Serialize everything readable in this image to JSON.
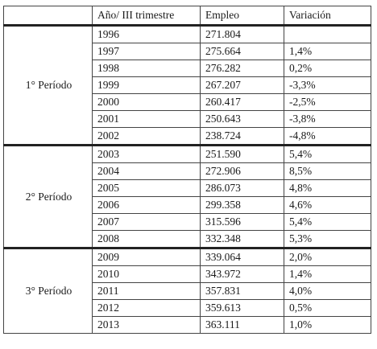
{
  "table": {
    "headers": [
      "",
      "Año/ III trimestre",
      "Empleo",
      "Variación"
    ],
    "periods": [
      {
        "label": "1° Período",
        "rows": [
          {
            "year": "1996",
            "empleo": "271.804",
            "variacion": ""
          },
          {
            "year": "1997",
            "empleo": "275.664",
            "variacion": "1,4%"
          },
          {
            "year": "1998",
            "empleo": "276.282",
            "variacion": "0,2%"
          },
          {
            "year": "1999",
            "empleo": "267.207",
            "variacion": "-3,3%"
          },
          {
            "year": "2000",
            "empleo": "260.417",
            "variacion": "-2,5%"
          },
          {
            "year": "2001",
            "empleo": "250.643",
            "variacion": "-3,8%"
          },
          {
            "year": "2002",
            "empleo": "238.724",
            "variacion": "-4,8%"
          }
        ]
      },
      {
        "label": "2° Período",
        "rows": [
          {
            "year": "2003",
            "empleo": "251.590",
            "variacion": "5,4%"
          },
          {
            "year": "2004",
            "empleo": "272.906",
            "variacion": "8,5%"
          },
          {
            "year": "2005",
            "empleo": "286.073",
            "variacion": "4,8%"
          },
          {
            "year": "2006",
            "empleo": "299.358",
            "variacion": "4,6%"
          },
          {
            "year": "2007",
            "empleo": "315.596",
            "variacion": "5,4%"
          },
          {
            "year": "2008",
            "empleo": "332.348",
            "variacion": "5,3%"
          }
        ]
      },
      {
        "label": "3° Período",
        "rows": [
          {
            "year": "2009",
            "empleo": "339.064",
            "variacion": "2,0%"
          },
          {
            "year": "2010",
            "empleo": "343.972",
            "variacion": "1,4%"
          },
          {
            "year": "2011",
            "empleo": "357.831",
            "variacion": "4,0%"
          },
          {
            "year": "2012",
            "empleo": "359.613",
            "variacion": "0,5%"
          },
          {
            "year": "2013",
            "empleo": "363.111",
            "variacion": "1,0%"
          }
        ]
      }
    ]
  }
}
